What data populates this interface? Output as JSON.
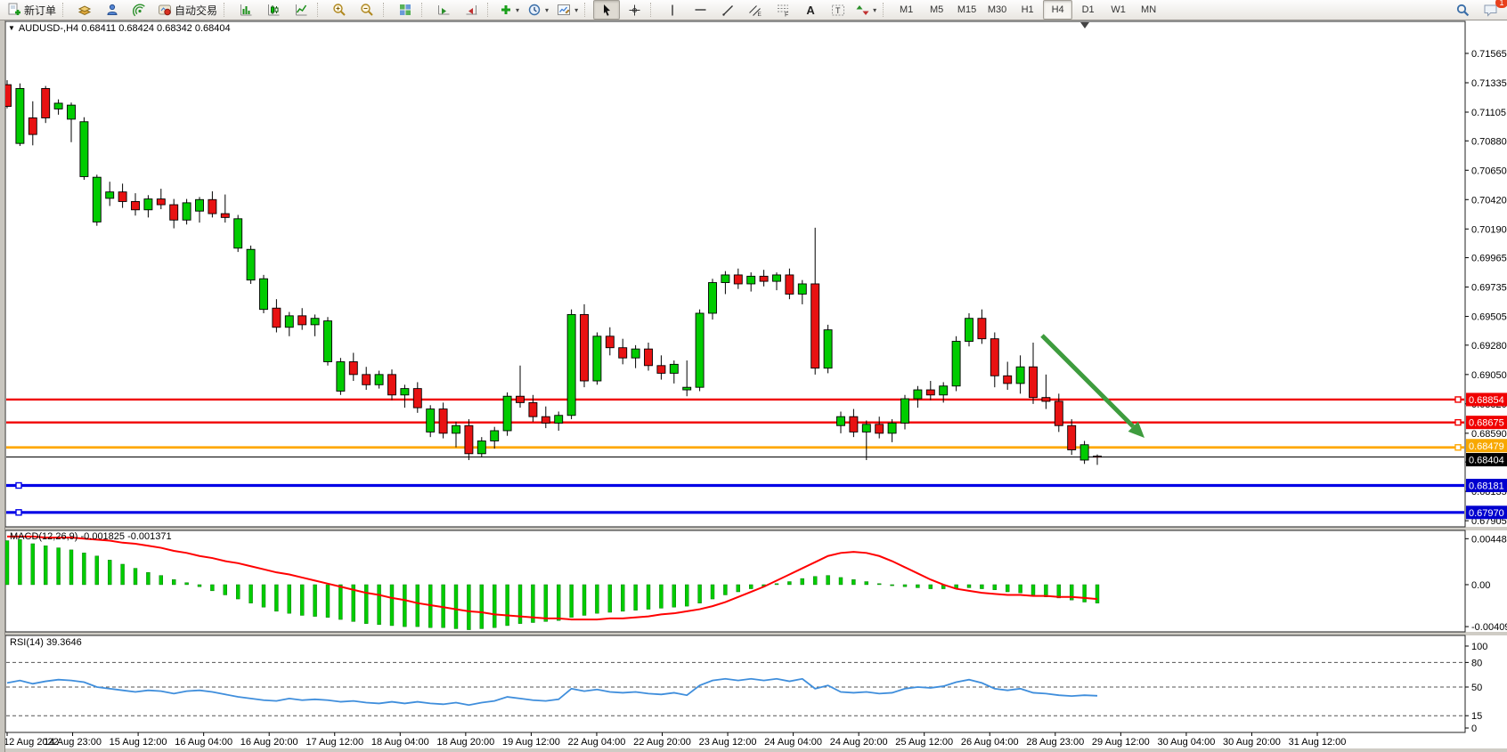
{
  "toolbar": {
    "new_order": "新订单",
    "auto_trading": "自动交易",
    "timeframes": [
      "M1",
      "M5",
      "M15",
      "M30",
      "H1",
      "H4",
      "D1",
      "W1",
      "MN"
    ],
    "active_timeframe": "H4",
    "notification_count": "1",
    "icons": [
      "new-order-icon",
      "quick-trade-icon",
      "profile-icon",
      "signals-icon",
      "auto-trading-icon",
      "bar-chart-icon",
      "candlestick-chart-icon",
      "line-chart-icon",
      "zoom-in-icon",
      "zoom-out-icon",
      "tile-windows-icon",
      "auto-scroll-icon",
      "chart-shift-icon",
      "indicators-icon",
      "periods-icon",
      "templates-icon",
      "cursor-icon",
      "crosshair-icon",
      "vertical-line-icon",
      "horizontal-line-icon",
      "trendline-icon",
      "channel-icon",
      "fibonacci-icon",
      "text-icon",
      "text-label-icon",
      "arrows-icon",
      "search-icon",
      "chat-icon"
    ]
  },
  "chart": {
    "expander": "▼",
    "symbol": "AUDUSD-,H4",
    "ohlc": "0.68411 0.68424 0.68342 0.68404"
  },
  "chart_data": {
    "type": "candlestick",
    "symbol": "AUDUSD",
    "timeframe": "H4",
    "open": 0.68411,
    "high": 0.68424,
    "low": 0.68342,
    "close": 0.68404,
    "colors": {
      "up": "#00CC00",
      "down": "#E81212",
      "wick": "#000000"
    },
    "price_axis": {
      "ticks": [
        "0.71565",
        "0.71335",
        "0.71105",
        "0.70880",
        "0.70650",
        "0.70420",
        "0.70190",
        "0.69965",
        "0.69735",
        "0.69505",
        "0.69280",
        "0.69050",
        "0.68820",
        "0.68590",
        "0.68365",
        "0.68135",
        "0.67905"
      ]
    },
    "candles": [
      [
        0.7132,
        0.71355,
        0.71135,
        0.7115
      ],
      [
        0.7086,
        0.7133,
        0.7084,
        0.7129
      ],
      [
        0.7106,
        0.7119,
        0.70845,
        0.7093
      ],
      [
        0.7129,
        0.7131,
        0.7102,
        0.7106
      ],
      [
        0.7113,
        0.71205,
        0.71085,
        0.71175
      ],
      [
        0.7105,
        0.7118,
        0.7087,
        0.7116
      ],
      [
        0.706,
        0.71065,
        0.70575,
        0.7103
      ],
      [
        0.70245,
        0.70615,
        0.70215,
        0.70595
      ],
      [
        0.7043,
        0.7056,
        0.7037,
        0.7048
      ],
      [
        0.7048,
        0.70545,
        0.70355,
        0.70405
      ],
      [
        0.70405,
        0.7047,
        0.70295,
        0.7034
      ],
      [
        0.7034,
        0.70455,
        0.7028,
        0.70425
      ],
      [
        0.70425,
        0.70505,
        0.70345,
        0.7038
      ],
      [
        0.7038,
        0.70425,
        0.70195,
        0.7026
      ],
      [
        0.7026,
        0.70425,
        0.70225,
        0.70395
      ],
      [
        0.7033,
        0.7044,
        0.7024,
        0.7042
      ],
      [
        0.7042,
        0.70485,
        0.7028,
        0.7031
      ],
      [
        0.7031,
        0.7046,
        0.7024,
        0.7028
      ],
      [
        0.7004,
        0.703,
        0.7001,
        0.7027
      ],
      [
        0.6979,
        0.7006,
        0.6976,
        0.7003
      ],
      [
        0.6956,
        0.6983,
        0.6953,
        0.698
      ],
      [
        0.6957,
        0.6964,
        0.6938,
        0.6942
      ],
      [
        0.6942,
        0.6954,
        0.6935,
        0.6951
      ],
      [
        0.6951,
        0.6957,
        0.694,
        0.6944
      ],
      [
        0.6944,
        0.6952,
        0.6935,
        0.6949
      ],
      [
        0.6915,
        0.695,
        0.6912,
        0.6947
      ],
      [
        0.6892,
        0.6918,
        0.6889,
        0.6915
      ],
      [
        0.6915,
        0.6922,
        0.69,
        0.6905
      ],
      [
        0.6905,
        0.6911,
        0.6893,
        0.6897
      ],
      [
        0.6897,
        0.6908,
        0.6894,
        0.6905
      ],
      [
        0.6905,
        0.6909,
        0.6885,
        0.6889
      ],
      [
        0.6889,
        0.6897,
        0.6879,
        0.6894
      ],
      [
        0.6894,
        0.6899,
        0.6875,
        0.6879
      ],
      [
        0.686,
        0.6881,
        0.6856,
        0.6878
      ],
      [
        0.6878,
        0.6883,
        0.6855,
        0.6859
      ],
      [
        0.6859,
        0.6868,
        0.6848,
        0.6865
      ],
      [
        0.6865,
        0.687,
        0.6838,
        0.6843
      ],
      [
        0.6843,
        0.6856,
        0.684,
        0.6853
      ],
      [
        0.6853,
        0.6864,
        0.6847,
        0.6861
      ],
      [
        0.6861,
        0.6891,
        0.6857,
        0.6888
      ],
      [
        0.6888,
        0.6912,
        0.6879,
        0.6883
      ],
      [
        0.6883,
        0.6889,
        0.6868,
        0.6872
      ],
      [
        0.6872,
        0.688,
        0.6863,
        0.6867
      ],
      [
        0.6867,
        0.6876,
        0.6861,
        0.6873
      ],
      [
        0.6873,
        0.6956,
        0.687,
        0.6952
      ],
      [
        0.6952,
        0.696,
        0.6895,
        0.69
      ],
      [
        0.69,
        0.6938,
        0.6897,
        0.6935
      ],
      [
        0.6935,
        0.6942,
        0.692,
        0.6926
      ],
      [
        0.6926,
        0.6933,
        0.6913,
        0.6918
      ],
      [
        0.6918,
        0.6928,
        0.691,
        0.6925
      ],
      [
        0.6925,
        0.693,
        0.6908,
        0.6912
      ],
      [
        0.6912,
        0.692,
        0.6901,
        0.6906
      ],
      [
        0.6906,
        0.6916,
        0.6898,
        0.6913
      ],
      [
        0.6893,
        0.6916,
        0.6888,
        0.6895
      ],
      [
        0.6895,
        0.6956,
        0.6892,
        0.6953
      ],
      [
        0.6953,
        0.698,
        0.6948,
        0.6977
      ],
      [
        0.6977,
        0.6986,
        0.6968,
        0.6983
      ],
      [
        0.6983,
        0.6988,
        0.6972,
        0.6976
      ],
      [
        0.6976,
        0.6985,
        0.697,
        0.6982
      ],
      [
        0.6982,
        0.6987,
        0.6974,
        0.6978
      ],
      [
        0.6978,
        0.6985,
        0.6971,
        0.6983
      ],
      [
        0.6983,
        0.6988,
        0.6964,
        0.6968
      ],
      [
        0.6968,
        0.6979,
        0.696,
        0.6976
      ],
      [
        0.6976,
        0.702,
        0.6905,
        0.691
      ],
      [
        0.691,
        0.6944,
        0.6906,
        0.694
      ],
      [
        0.6865,
        0.6876,
        0.6859,
        0.6872
      ],
      [
        0.6872,
        0.6878,
        0.6856,
        0.686
      ],
      [
        0.686,
        0.6869,
        0.6838,
        0.6866
      ],
      [
        0.6866,
        0.6872,
        0.6855,
        0.6859
      ],
      [
        0.6859,
        0.687,
        0.6852,
        0.6867
      ],
      [
        0.6867,
        0.6889,
        0.6862,
        0.6886
      ],
      [
        0.6886,
        0.6896,
        0.6879,
        0.6893
      ],
      [
        0.6893,
        0.69,
        0.6885,
        0.6889
      ],
      [
        0.6889,
        0.6899,
        0.6883,
        0.6896
      ],
      [
        0.6896,
        0.6935,
        0.6892,
        0.6931
      ],
      [
        0.6931,
        0.6953,
        0.6927,
        0.6949
      ],
      [
        0.6949,
        0.6956,
        0.6929,
        0.6933
      ],
      [
        0.6933,
        0.6938,
        0.6895,
        0.6904
      ],
      [
        0.6904,
        0.6915,
        0.6893,
        0.6898
      ],
      [
        0.6898,
        0.692,
        0.689,
        0.6911
      ],
      [
        0.6911,
        0.693,
        0.6882,
        0.6887
      ],
      [
        0.6887,
        0.6905,
        0.6878,
        0.6884
      ],
      [
        0.6884,
        0.689,
        0.686,
        0.6865
      ],
      [
        0.6865,
        0.687,
        0.6842,
        0.6846
      ],
      [
        0.6838,
        0.6853,
        0.6835,
        0.685
      ],
      [
        0.68411,
        0.68424,
        0.68342,
        0.68404
      ]
    ],
    "hlines": [
      {
        "price": 0.68854,
        "label": "0.68854",
        "color": "#F00000",
        "badge": "#F00000",
        "width": 2.4,
        "handle": "right"
      },
      {
        "price": 0.68675,
        "label": "0.68675",
        "color": "#F00000",
        "badge": "#F00000",
        "width": 2.4,
        "handle": "right"
      },
      {
        "price": 0.68479,
        "label": "0.68479",
        "color": "#FFA800",
        "badge": "#F8A800",
        "width": 2.8,
        "handle": "right"
      },
      {
        "price": 0.68181,
        "label": "0.68181",
        "color": "#0000E6",
        "badge": "#0000CF",
        "width": 3.2,
        "handle": "left"
      },
      {
        "price": 0.6797,
        "label": "0.67970",
        "color": "#0000E6",
        "badge": "#0000CF",
        "width": 3.2,
        "handle": "left"
      }
    ],
    "current_price": {
      "price": 0.68404,
      "label": "0.68404",
      "badge": "#000000"
    },
    "arrow": {
      "from": [
        1170,
        355
      ],
      "to": [
        1285,
        470
      ],
      "color": "#3E9C3E"
    },
    "macd": {
      "label": "MACD(12,26,9)",
      "value_macd": "-0.001825",
      "value_signal": "-0.001371",
      "bar_color": "#00CC00",
      "signal_color": "#FF0000",
      "axis_labels": [
        {
          "v": 0.004489,
          "text": "0.004489"
        },
        {
          "v": 0,
          "text": "0.00"
        },
        {
          "v": -0.004098,
          "text": "-0.004098"
        }
      ],
      "histogram": [
        0.0043,
        0.0044,
        0.004,
        0.0038,
        0.0036,
        0.0034,
        0.0031,
        0.0028,
        0.0024,
        0.002,
        0.0016,
        0.0012,
        0.0009,
        0.0005,
        0.0002,
        -0.0002,
        -0.0006,
        -0.001,
        -0.0014,
        -0.0018,
        -0.0022,
        -0.0026,
        -0.0028,
        -0.003,
        -0.0031,
        -0.0032,
        -0.0034,
        -0.0036,
        -0.0038,
        -0.0039,
        -0.004,
        -0.0041,
        -0.0041,
        -0.0042,
        -0.0042,
        -0.0043,
        -0.0044,
        -0.0043,
        -0.0042,
        -0.004,
        -0.0038,
        -0.0037,
        -0.0036,
        -0.0035,
        -0.0032,
        -0.003,
        -0.0028,
        -0.0027,
        -0.0026,
        -0.0025,
        -0.0024,
        -0.0023,
        -0.0022,
        -0.0021,
        -0.0018,
        -0.0014,
        -0.001,
        -0.0007,
        -0.0004,
        -0.0002,
        0.0001,
        0.0003,
        0.0006,
        0.0008,
        0.0009,
        0.0007,
        0.0005,
        0.0003,
        0.0001,
        -0.0001,
        -0.0002,
        -0.0003,
        -0.0004,
        -0.0004,
        -0.0004,
        -0.0003,
        -0.0004,
        -0.0005,
        -0.0007,
        -0.0008,
        -0.001,
        -0.0012,
        -0.0013,
        -0.0015,
        -0.0017,
        -0.0018
      ],
      "signal": [
        0.0047,
        0.0047,
        0.0047,
        0.0046,
        0.0046,
        0.0046,
        0.0045,
        0.0044,
        0.0043,
        0.0041,
        0.004,
        0.0038,
        0.0036,
        0.0033,
        0.0031,
        0.0028,
        0.0026,
        0.0023,
        0.0021,
        0.0018,
        0.0015,
        0.0012,
        0.001,
        0.0007,
        0.0004,
        0.0001,
        -0.0002,
        -0.0005,
        -0.0008,
        -0.001,
        -0.0013,
        -0.0015,
        -0.0018,
        -0.002,
        -0.0022,
        -0.0024,
        -0.0026,
        -0.0027,
        -0.0029,
        -0.003,
        -0.0031,
        -0.0032,
        -0.0033,
        -0.0033,
        -0.0034,
        -0.0034,
        -0.0034,
        -0.0033,
        -0.0033,
        -0.0032,
        -0.0031,
        -0.0029,
        -0.0028,
        -0.0026,
        -0.0024,
        -0.0021,
        -0.0017,
        -0.0012,
        -0.0007,
        -0.0002,
        0.0004,
        0.001,
        0.0016,
        0.0022,
        0.0028,
        0.0031,
        0.0032,
        0.0031,
        0.0028,
        0.0023,
        0.0017,
        0.0011,
        0.0005,
        0.0,
        -0.0004,
        -0.0006,
        -0.0008,
        -0.0009,
        -0.001,
        -0.001,
        -0.0011,
        -0.0011,
        -0.0012,
        -0.0012,
        -0.0013,
        -0.0014
      ]
    },
    "rsi": {
      "label": "RSI(14)",
      "value": "39.3646",
      "line_color": "#3F8EDC",
      "levels": [
        80,
        50,
        15
      ],
      "axis_labels": [
        {
          "v": 100,
          "text": "100"
        },
        {
          "v": 80,
          "text": "80"
        },
        {
          "v": 50,
          "text": "50"
        },
        {
          "v": 15,
          "text": "15"
        },
        {
          "v": 0,
          "text": "0"
        }
      ],
      "values": [
        55,
        58,
        54,
        57,
        59,
        58,
        56,
        50,
        48,
        46,
        44,
        46,
        45,
        42,
        45,
        46,
        44,
        41,
        38,
        36,
        34,
        33,
        36,
        34,
        35,
        34,
        32,
        33,
        31,
        30,
        32,
        30,
        32,
        30,
        29,
        31,
        28,
        31,
        33,
        38,
        36,
        34,
        33,
        35,
        48,
        45,
        47,
        44,
        43,
        44,
        42,
        41,
        43,
        40,
        52,
        58,
        60,
        58,
        60,
        58,
        60,
        57,
        60,
        48,
        52,
        44,
        43,
        44,
        42,
        43,
        48,
        50,
        49,
        51,
        56,
        59,
        55,
        48,
        46,
        48,
        43,
        42,
        40,
        39,
        40,
        39.36
      ]
    },
    "time_axis": {
      "labels": [
        "12 Aug 2022",
        "14 Aug 23:00",
        "15 Aug 12:00",
        "16 Aug 04:00",
        "16 Aug 20:00",
        "17 Aug 12:00",
        "18 Aug 04:00",
        "18 Aug 20:00",
        "19 Aug 12:00",
        "22 Aug 04:00",
        "22 Aug 20:00",
        "23 Aug 12:00",
        "24 Aug 04:00",
        "24 Aug 20:00",
        "25 Aug 12:00",
        "26 Aug 04:00",
        "28 Aug 23:00",
        "29 Aug 12:00",
        "30 Aug 04:00",
        "30 Aug 20:00",
        "31 Aug 12:00"
      ]
    }
  }
}
